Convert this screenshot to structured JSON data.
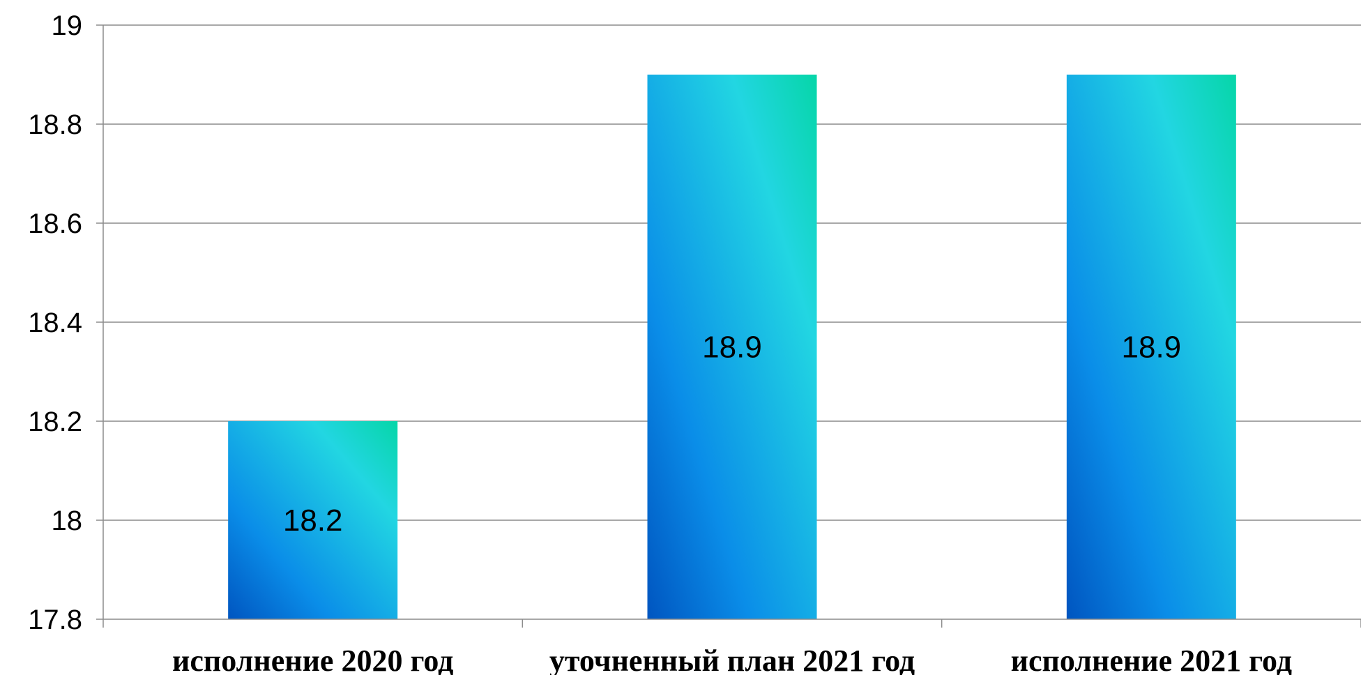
{
  "chart_data": {
    "type": "bar",
    "categories": [
      "исполнение 2020 год",
      "уточненный план 2021 год",
      "исполнение 2021 год"
    ],
    "values": [
      18.2,
      18.9,
      18.9
    ],
    "data_labels": [
      "18.2",
      "18.9",
      "18.9"
    ],
    "ylim": [
      17.8,
      19
    ],
    "yticks": [
      17.8,
      18,
      18.2,
      18.4,
      18.6,
      18.8,
      19
    ],
    "ytick_labels": [
      "17.8",
      "18",
      "18.2",
      "18.4",
      "18.6",
      "18.8",
      "19"
    ],
    "grid": true,
    "legend": "none",
    "colors": {
      "bar_dark": "#0055c0",
      "bar_mid": "#0a8de8",
      "bar_light": "#22d6e2",
      "bar_accent": "#06d6a8"
    }
  }
}
